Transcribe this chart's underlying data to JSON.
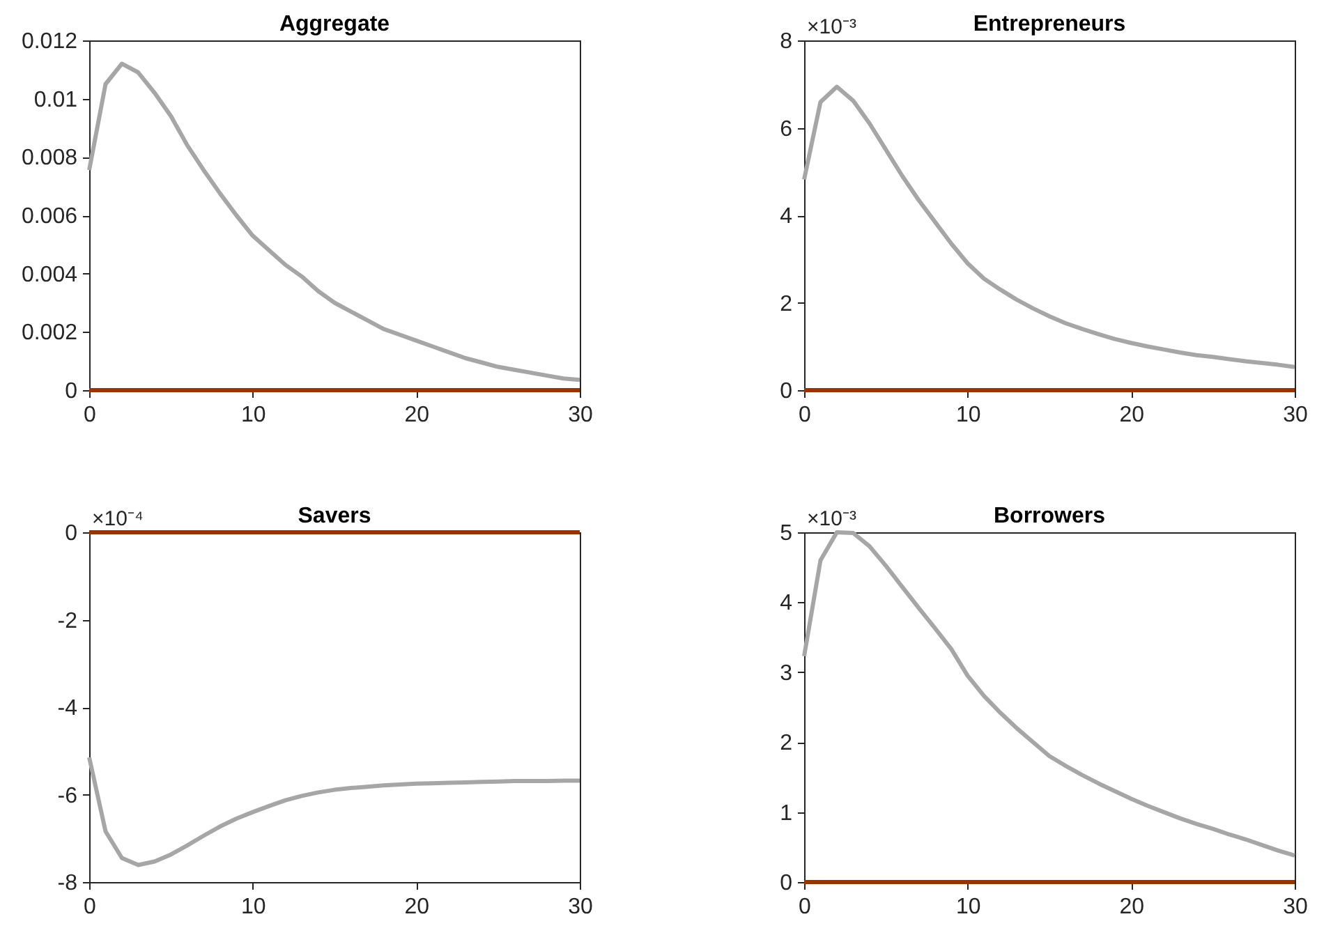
{
  "chart_data": [
    {
      "type": "line",
      "title": "Aggregate",
      "x": [
        0,
        1,
        2,
        3,
        4,
        5,
        6,
        7,
        8,
        9,
        10,
        11,
        12,
        13,
        14,
        15,
        16,
        17,
        18,
        19,
        20,
        21,
        22,
        23,
        24,
        25,
        26,
        27,
        28,
        29,
        30
      ],
      "xlim": [
        0,
        30
      ],
      "xticks": [
        0,
        10,
        20,
        30
      ],
      "ylim": [
        0,
        0.012
      ],
      "yticks": [
        0,
        0.002,
        0.004,
        0.006,
        0.008,
        0.01,
        0.012
      ],
      "series": [
        {
          "color": "#a6a6a6",
          "values": [
            0.00755,
            0.0105,
            0.0112,
            0.0109,
            0.0102,
            0.0094,
            0.0084,
            0.00755,
            0.00675,
            0.006,
            0.0053,
            0.0048,
            0.0043,
            0.0039,
            0.0034,
            0.003,
            0.0027,
            0.0024,
            0.0021,
            0.0019,
            0.0017,
            0.0015,
            0.0013,
            0.0011,
            0.00095,
            0.0008,
            0.0007,
            0.0006,
            0.0005,
            0.0004,
            0.00035
          ]
        },
        {
          "color": "#993300",
          "values": [
            0,
            0,
            0,
            0,
            0,
            0,
            0,
            0,
            0,
            0,
            0,
            0,
            0,
            0,
            0,
            0,
            0,
            0,
            0,
            0,
            0,
            0,
            0,
            0,
            0,
            0,
            0,
            0,
            0,
            0,
            0
          ]
        }
      ]
    },
    {
      "type": "line",
      "title": "Entrepreneurs",
      "x": [
        0,
        1,
        2,
        3,
        4,
        5,
        6,
        7,
        8,
        9,
        10,
        11,
        12,
        13,
        14,
        15,
        16,
        17,
        18,
        19,
        20,
        21,
        22,
        23,
        24,
        25,
        26,
        27,
        28,
        29,
        30
      ],
      "xlim": [
        0,
        30
      ],
      "xticks": [
        0,
        10,
        20,
        30
      ],
      "ylim": [
        0,
        8
      ],
      "yticks": [
        0,
        2,
        4,
        6,
        8
      ],
      "annotations": [
        "×10⁻³"
      ],
      "series": [
        {
          "color": "#a6a6a6",
          "values": [
            4.82,
            6.59,
            6.94,
            6.62,
            6.1,
            5.5,
            4.9,
            4.35,
            3.85,
            3.35,
            2.9,
            2.55,
            2.3,
            2.07,
            1.87,
            1.69,
            1.53,
            1.4,
            1.28,
            1.17,
            1.08,
            1.0,
            0.93,
            0.86,
            0.8,
            0.76,
            0.71,
            0.66,
            0.62,
            0.58,
            0.53
          ]
        },
        {
          "color": "#993300",
          "values": [
            0,
            0,
            0,
            0,
            0,
            0,
            0,
            0,
            0,
            0,
            0,
            0,
            0,
            0,
            0,
            0,
            0,
            0,
            0,
            0,
            0,
            0,
            0,
            0,
            0,
            0,
            0,
            0,
            0,
            0,
            0
          ]
        }
      ]
    },
    {
      "type": "line",
      "title": "Savers",
      "x": [
        0,
        1,
        2,
        3,
        4,
        5,
        6,
        7,
        8,
        9,
        10,
        11,
        12,
        13,
        14,
        15,
        16,
        17,
        18,
        19,
        20,
        21,
        22,
        23,
        24,
        25,
        26,
        27,
        28,
        29,
        30
      ],
      "xlim": [
        0,
        30
      ],
      "xticks": [
        0,
        10,
        20,
        30
      ],
      "ylim": [
        -8,
        0
      ],
      "yticks": [
        -8,
        -6,
        -4,
        -2,
        0
      ],
      "annotations": [
        "×10⁻⁴"
      ],
      "series": [
        {
          "color": "#a6a6a6",
          "values": [
            -5.15,
            -6.84,
            -7.45,
            -7.61,
            -7.53,
            -7.37,
            -7.16,
            -6.94,
            -6.73,
            -6.55,
            -6.4,
            -6.26,
            -6.13,
            -6.03,
            -5.95,
            -5.89,
            -5.85,
            -5.82,
            -5.79,
            -5.77,
            -5.75,
            -5.74,
            -5.73,
            -5.72,
            -5.71,
            -5.7,
            -5.69,
            -5.69,
            -5.69,
            -5.68,
            -5.68
          ]
        },
        {
          "color": "#993300",
          "values": [
            0,
            0,
            0,
            0,
            0,
            0,
            0,
            0,
            0,
            0,
            0,
            0,
            0,
            0,
            0,
            0,
            0,
            0,
            0,
            0,
            0,
            0,
            0,
            0,
            0,
            0,
            0,
            0,
            0,
            0,
            0
          ]
        }
      ]
    },
    {
      "type": "line",
      "title": "Borrowers",
      "x": [
        0,
        1,
        2,
        3,
        4,
        5,
        6,
        7,
        8,
        9,
        10,
        11,
        12,
        13,
        14,
        15,
        16,
        17,
        18,
        19,
        20,
        21,
        22,
        23,
        24,
        25,
        26,
        27,
        28,
        29,
        30
      ],
      "xlim": [
        0,
        30
      ],
      "xticks": [
        0,
        10,
        20,
        30
      ],
      "ylim": [
        0,
        5
      ],
      "yticks": [
        0,
        1,
        2,
        3,
        4,
        5
      ],
      "annotations": [
        "×10⁻³"
      ],
      "series": [
        {
          "color": "#a6a6a6",
          "values": [
            3.23,
            4.6,
            5.0,
            4.99,
            4.8,
            4.52,
            4.22,
            3.92,
            3.63,
            3.33,
            2.95,
            2.66,
            2.42,
            2.2,
            2.0,
            1.8,
            1.66,
            1.53,
            1.41,
            1.3,
            1.19,
            1.09,
            1.0,
            0.91,
            0.83,
            0.76,
            0.68,
            0.61,
            0.53,
            0.45,
            0.38
          ]
        },
        {
          "color": "#993300",
          "values": [
            0,
            0,
            0,
            0,
            0,
            0,
            0,
            0,
            0,
            0,
            0,
            0,
            0,
            0,
            0,
            0,
            0,
            0,
            0,
            0,
            0,
            0,
            0,
            0,
            0,
            0,
            0,
            0,
            0,
            0,
            0
          ]
        }
      ]
    }
  ]
}
